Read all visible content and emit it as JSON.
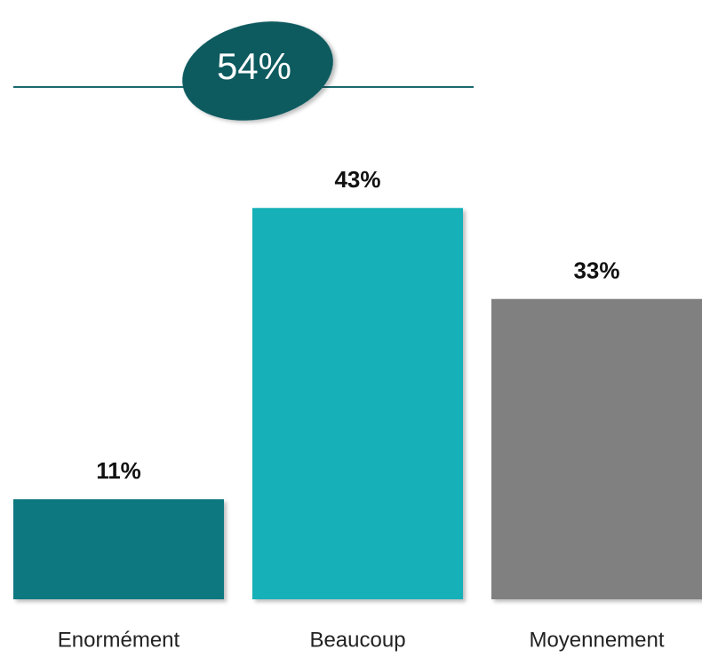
{
  "chart_data": {
    "type": "bar",
    "annotation": "54%",
    "categories": [
      "Enormément",
      "Beaucoup",
      "Moyennement"
    ],
    "values": [
      11,
      43,
      33
    ],
    "value_labels": [
      "11%",
      "43%",
      "33%"
    ],
    "colors": [
      "#0f7880",
      "#14b0b8",
      "#808080"
    ]
  }
}
